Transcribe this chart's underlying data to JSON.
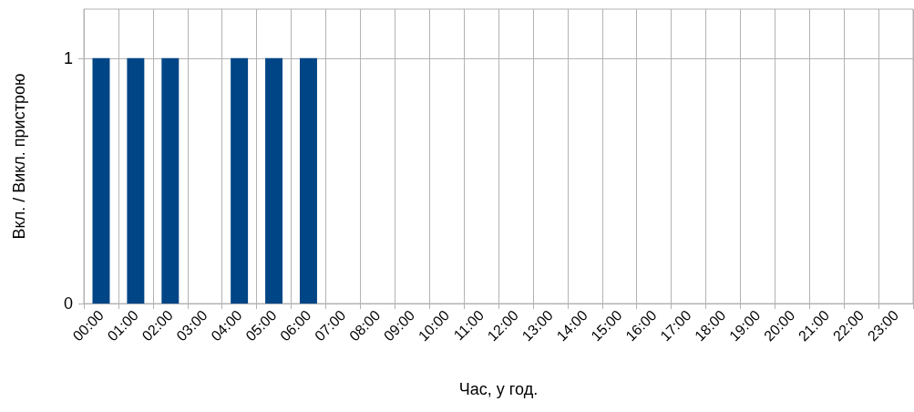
{
  "chart_data": {
    "type": "bar",
    "xlabel": "Час, у год.",
    "ylabel": "Вкл. / Викл. пристрою",
    "categories": [
      "00:00",
      "01:00",
      "02:00",
      "03:00",
      "04:00",
      "05:00",
      "06:00",
      "07:00",
      "08:00",
      "09:00",
      "10:00",
      "11:00",
      "12:00",
      "13:00",
      "14:00",
      "15:00",
      "16:00",
      "17:00",
      "18:00",
      "19:00",
      "20:00",
      "21:00",
      "22:00",
      "23:00"
    ],
    "values": [
      1,
      1,
      1,
      0,
      1,
      1,
      1,
      0,
      0,
      0,
      0,
      0,
      0,
      0,
      0,
      0,
      0,
      0,
      0,
      0,
      0,
      0,
      0,
      0
    ],
    "color": "#004586",
    "ylim": [
      0,
      1.2
    ],
    "yticks": [
      0,
      1
    ],
    "grid": true
  }
}
